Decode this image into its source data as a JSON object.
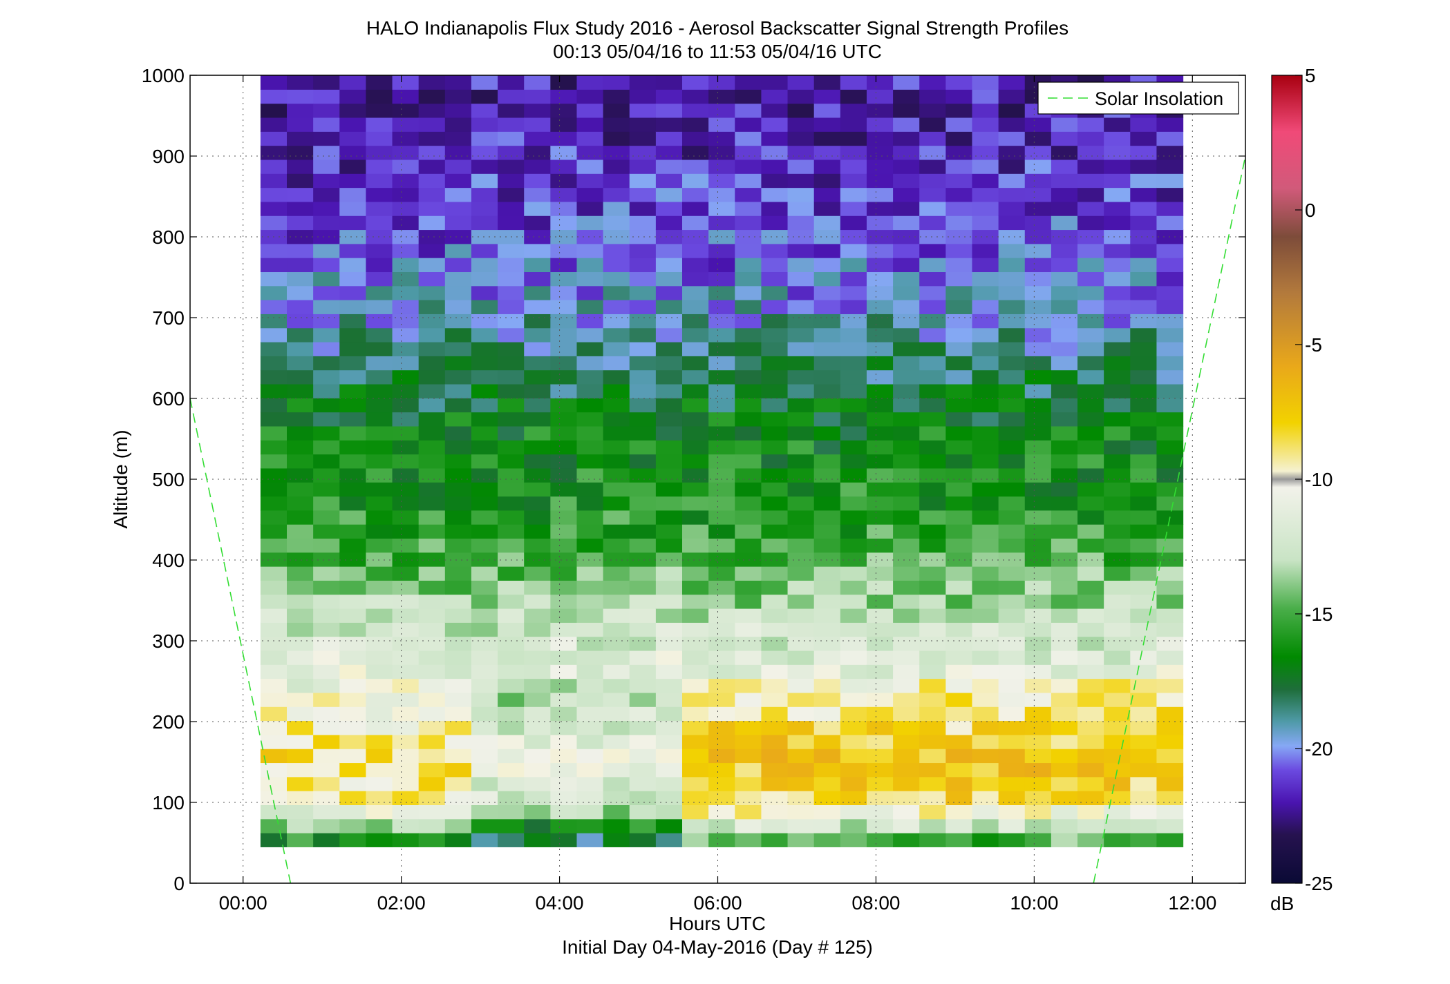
{
  "chart_data": {
    "type": "heatmap",
    "title": "HALO Indianapolis Flux Study 2016 - Aerosol Backscatter Signal Strength Profiles",
    "subtitle": "00:13 05/04/16 to 11:53 05/04/16  UTC",
    "xlabel": "Hours UTC",
    "xlabel2": "Initial Day 04-May-2016 (Day # 125)",
    "ylabel": "Altitude (m)",
    "xlim": [
      -0.67,
      12.67
    ],
    "ylim": [
      0,
      1000
    ],
    "x_ticks": [
      0,
      2,
      4,
      6,
      8,
      10,
      12
    ],
    "x_tick_labels": [
      "00:00",
      "02:00",
      "04:00",
      "06:00",
      "08:00",
      "10:00",
      "12:00"
    ],
    "y_ticks": [
      0,
      100,
      200,
      300,
      400,
      500,
      600,
      700,
      800,
      900,
      1000
    ],
    "y_tick_labels": [
      "0",
      "100",
      "200",
      "300",
      "400",
      "500",
      "600",
      "700",
      "800",
      "900",
      "1000"
    ],
    "grid": true,
    "colorbar": {
      "min": -25,
      "max": 5,
      "ticks": [
        5,
        0,
        -5,
        -10,
        -15,
        -20,
        -25
      ],
      "tick_labels": [
        "5",
        "0",
        "-5",
        "-10",
        "-15",
        "-20",
        "-25"
      ],
      "unit": "dB"
    },
    "heatmap": {
      "x_start": 0.22,
      "x_end": 11.88,
      "columns": 35,
      "y_start": 45,
      "y_end": 1000,
      "rows": 55,
      "value_by_altitude_m": [
        {
          "altitude": 55,
          "value": -16
        },
        {
          "altitude": 100,
          "value": -9.5
        },
        {
          "altitude": 160,
          "value": -8.5
        },
        {
          "altitude": 220,
          "value": -10.5
        },
        {
          "altitude": 300,
          "value": -12
        },
        {
          "altitude": 380,
          "value": -14.5
        },
        {
          "altitude": 470,
          "value": -16
        },
        {
          "altitude": 550,
          "value": -16.5
        },
        {
          "altitude": 620,
          "value": -18
        },
        {
          "altitude": 700,
          "value": -19.5
        },
        {
          "altitude": 800,
          "value": -21
        },
        {
          "altitude": 950,
          "value": -22
        }
      ]
    },
    "series": [
      {
        "name": "Solar Insolation",
        "style": "dashed",
        "color": "#33dd33",
        "segments": [
          {
            "x": [
              -0.67,
              0.6
            ],
            "y": [
              600,
              0
            ]
          },
          {
            "x": [
              10.75,
              12.67
            ],
            "y": [
              0,
              900
            ]
          }
        ]
      }
    ],
    "legend": {
      "entries": [
        "Solar Insolation"
      ],
      "position": "top-right"
    }
  }
}
